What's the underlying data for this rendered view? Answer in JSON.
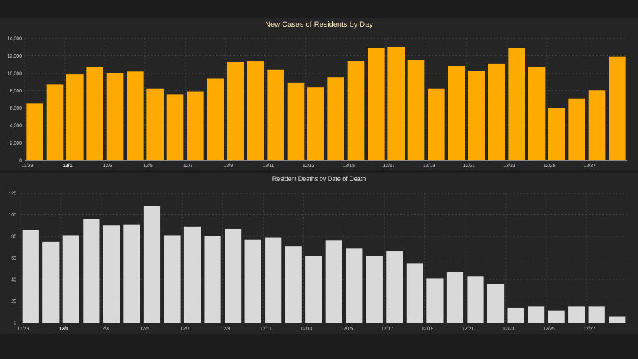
{
  "charts": {
    "cases_title": "New Cases of Residents by Day",
    "deaths_title": "Resident Deaths by Date of Death"
  },
  "chart_data": [
    {
      "type": "bar",
      "title": "New Cases of Residents by Day",
      "xlabel": "",
      "ylabel": "",
      "bar_color": "#ffaa00",
      "categories": [
        "11/29",
        "11/30",
        "12/1",
        "12/2",
        "12/3",
        "12/4",
        "12/5",
        "12/6",
        "12/7",
        "12/8",
        "12/9",
        "12/10",
        "12/11",
        "12/12",
        "12/13",
        "12/14",
        "12/15",
        "12/16",
        "12/17",
        "12/18",
        "12/19",
        "12/20",
        "12/21",
        "12/22",
        "12/23",
        "12/24",
        "12/25",
        "12/26",
        "12/27",
        "12/28"
      ],
      "tick_labels": [
        "11/29",
        "12/1",
        "12/3",
        "12/5",
        "12/7",
        "12/9",
        "12/11",
        "12/13",
        "12/15",
        "12/17",
        "12/19",
        "12/21",
        "12/23",
        "12/25",
        "12/27"
      ],
      "values": [
        6500,
        8700,
        9900,
        10700,
        10000,
        10200,
        8200,
        7600,
        7900,
        9400,
        11300,
        11400,
        10400,
        8900,
        8400,
        9500,
        11400,
        12900,
        13000,
        11500,
        8200,
        10800,
        10300,
        11100,
        12900,
        10700,
        6000,
        7100,
        8000,
        11900
      ],
      "ylim": [
        0,
        14000
      ],
      "yticks": [
        0,
        2000,
        4000,
        6000,
        8000,
        10000,
        12000,
        14000
      ],
      "ytick_labels": [
        "0",
        "2,000",
        "4,000",
        "6,000",
        "8,000",
        "10,000",
        "12,000",
        "14,000"
      ],
      "grid": true
    },
    {
      "type": "bar",
      "title": "Resident Deaths by Date of Death",
      "xlabel": "",
      "ylabel": "",
      "bar_color": "#d9d9d9",
      "categories": [
        "11/29",
        "11/30",
        "12/1",
        "12/2",
        "12/3",
        "12/4",
        "12/5",
        "12/6",
        "12/7",
        "12/8",
        "12/9",
        "12/10",
        "12/11",
        "12/12",
        "12/13",
        "12/14",
        "12/15",
        "12/16",
        "12/17",
        "12/18",
        "12/19",
        "12/20",
        "12/21",
        "12/22",
        "12/23",
        "12/24",
        "12/25",
        "12/26",
        "12/27",
        "12/28"
      ],
      "tick_labels": [
        "11/29",
        "12/1",
        "12/3",
        "12/5",
        "12/7",
        "12/9",
        "12/11",
        "12/13",
        "12/15",
        "12/17",
        "12/19",
        "12/21",
        "12/23",
        "12/25",
        "12/27"
      ],
      "values": [
        86,
        75,
        81,
        96,
        90,
        91,
        108,
        81,
        89,
        80,
        87,
        77,
        79,
        71,
        62,
        76,
        69,
        62,
        66,
        55,
        41,
        47,
        43,
        36,
        14,
        15,
        11,
        15,
        15,
        6
      ],
      "ylim": [
        0,
        120
      ],
      "yticks": [
        0,
        20,
        40,
        60,
        80,
        100,
        120
      ],
      "ytick_labels": [
        "0",
        "20",
        "40",
        "60",
        "80",
        "100",
        "120"
      ],
      "grid": true
    }
  ]
}
